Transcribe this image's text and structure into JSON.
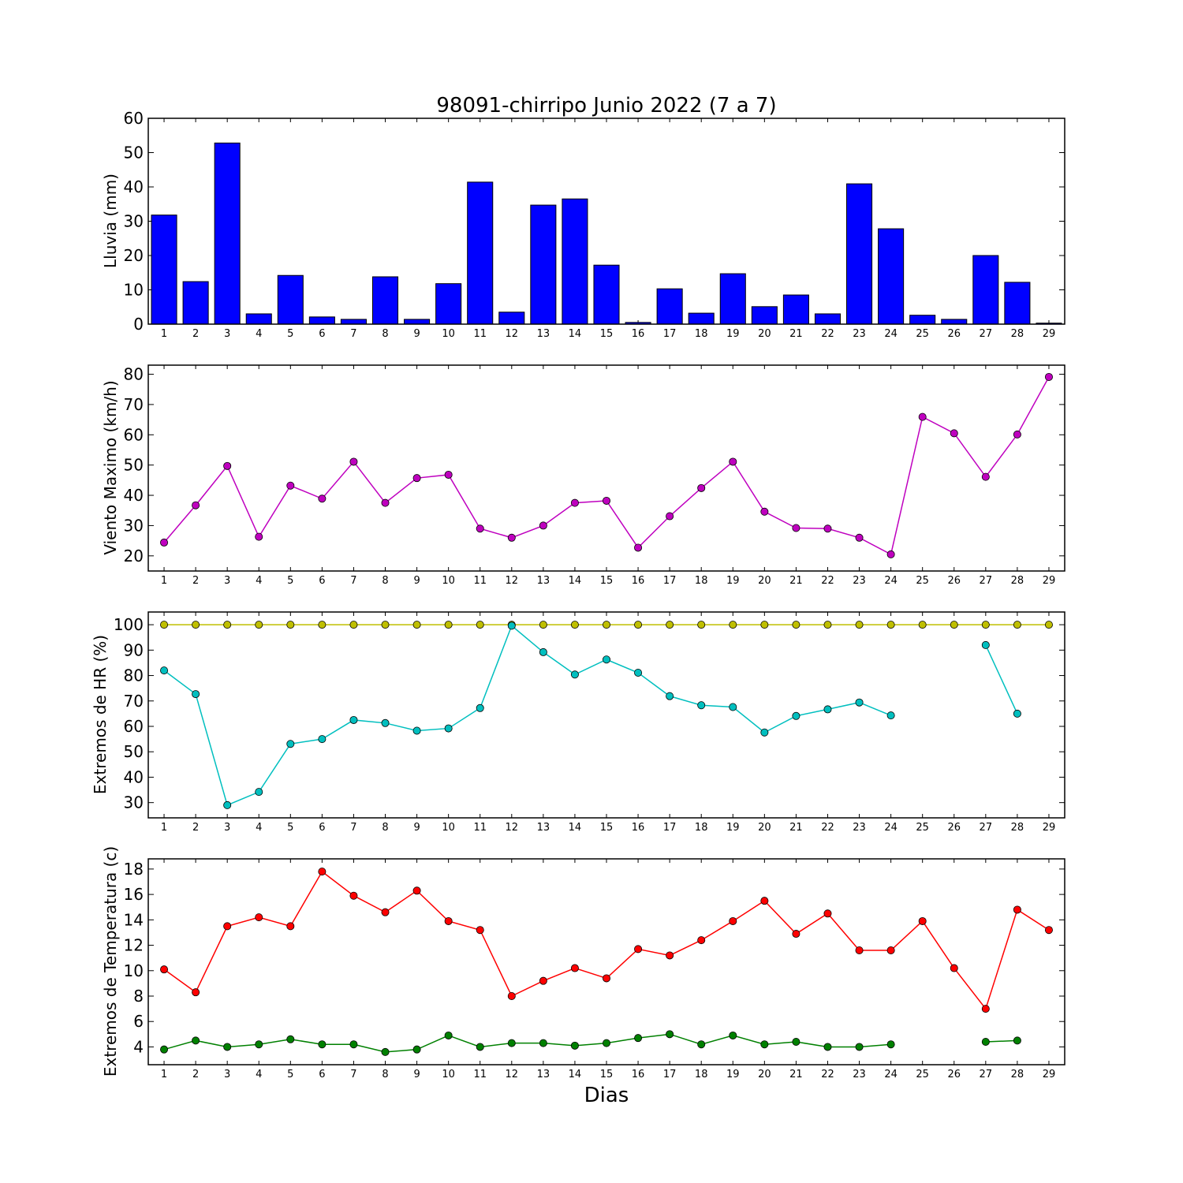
{
  "chart_data": [
    {
      "type": "bar",
      "title": "98091-chirripo Junio 2022  (7 a 7)",
      "xlabel": "",
      "ylabel": "Lluvia (mm)",
      "ylim": [
        0,
        60
      ],
      "yticks": [
        0,
        10,
        20,
        30,
        40,
        50,
        60
      ],
      "categories": [
        "1",
        "2",
        "3",
        "4",
        "5",
        "6",
        "7",
        "8",
        "9",
        "10",
        "11",
        "12",
        "13",
        "14",
        "15",
        "16",
        "17",
        "18",
        "19",
        "20",
        "21",
        "22",
        "23",
        "24",
        "25",
        "26",
        "27",
        "28",
        "29"
      ],
      "values": [
        31.8,
        12.4,
        52.8,
        3.0,
        14.2,
        2.1,
        1.4,
        13.8,
        1.4,
        11.8,
        41.4,
        3.5,
        34.7,
        36.5,
        17.2,
        0.5,
        10.3,
        3.2,
        14.7,
        5.1,
        8.5,
        3.0,
        40.9,
        27.8,
        2.6,
        1.4,
        20.0,
        12.2,
        0.3
      ],
      "colors": {
        "bar": "#0000ff"
      }
    },
    {
      "type": "line",
      "title": "",
      "xlabel": "",
      "ylabel": "Viento Maximo (km/h)",
      "ylim": [
        15,
        83
      ],
      "yticks": [
        20,
        30,
        40,
        50,
        60,
        70,
        80
      ],
      "x": [
        1,
        2,
        3,
        4,
        5,
        6,
        7,
        8,
        9,
        10,
        11,
        12,
        13,
        14,
        15,
        16,
        17,
        18,
        19,
        20,
        21,
        22,
        23,
        24,
        25,
        26,
        27,
        28,
        29
      ],
      "series": [
        {
          "values": [
            24.4,
            36.7,
            49.7,
            26.3,
            43.2,
            38.9,
            51.1,
            37.5,
            45.7,
            46.8,
            29.0,
            26.0,
            30.0,
            37.5,
            38.2,
            22.7,
            33.1,
            42.4,
            51.1,
            34.6,
            29.2,
            29.0,
            26.0,
            20.5,
            65.9,
            60.5,
            46.1,
            60.1,
            79.1
          ],
          "color": "#bf00bf"
        }
      ]
    },
    {
      "type": "line",
      "title": "",
      "xlabel": "",
      "ylabel": "Extremos de HR (%)",
      "ylim": [
        24,
        105
      ],
      "yticks": [
        30,
        40,
        50,
        60,
        70,
        80,
        90,
        100
      ],
      "x": [
        1,
        2,
        3,
        4,
        5,
        6,
        7,
        8,
        9,
        10,
        11,
        12,
        13,
        14,
        15,
        16,
        17,
        18,
        19,
        20,
        21,
        22,
        23,
        24,
        25,
        26,
        27,
        28,
        29
      ],
      "series": [
        {
          "values": [
            100,
            100,
            100,
            100,
            100,
            100,
            100,
            100,
            100,
            100,
            100,
            100,
            100,
            100,
            100,
            100,
            100,
            100,
            100,
            100,
            100,
            100,
            100,
            100,
            100,
            100,
            100,
            100,
            100
          ],
          "color": "#bfbf00"
        },
        {
          "values": [
            82,
            72.7,
            29,
            34.2,
            53.1,
            55,
            62.5,
            61.3,
            58.3,
            59.2,
            67.2,
            99.6,
            89.2,
            80.4,
            86.3,
            81.1,
            71.9,
            68.3,
            67.6,
            57.6,
            64.1,
            66.7,
            69.4,
            64.3,
            null,
            null,
            92,
            65,
            null
          ],
          "color": "#00bfbf"
        }
      ]
    },
    {
      "type": "line",
      "title": "",
      "xlabel": "Dias",
      "ylabel": "Extremos de Temperatura (c)",
      "ylim": [
        2.6,
        18.8
      ],
      "yticks": [
        4,
        6,
        8,
        10,
        12,
        14,
        16,
        18
      ],
      "x": [
        1,
        2,
        3,
        4,
        5,
        6,
        7,
        8,
        9,
        10,
        11,
        12,
        13,
        14,
        15,
        16,
        17,
        18,
        19,
        20,
        21,
        22,
        23,
        24,
        25,
        26,
        27,
        28,
        29
      ],
      "series": [
        {
          "values": [
            10.1,
            8.3,
            13.5,
            14.2,
            13.5,
            17.8,
            15.9,
            14.6,
            16.3,
            13.9,
            13.2,
            8.0,
            9.2,
            10.2,
            9.4,
            11.7,
            11.2,
            12.4,
            13.9,
            15.5,
            12.9,
            14.5,
            11.6,
            11.6,
            13.9,
            10.2,
            7.0,
            14.8,
            13.2
          ],
          "color": "#ff0000"
        },
        {
          "values": [
            3.8,
            4.5,
            4.0,
            4.2,
            4.6,
            4.2,
            4.2,
            3.6,
            3.8,
            4.9,
            4.0,
            4.3,
            4.3,
            4.1,
            4.3,
            4.7,
            5.0,
            4.2,
            4.9,
            4.2,
            4.4,
            4.0,
            4.0,
            4.2,
            null,
            null,
            4.4,
            4.5,
            null
          ],
          "color": "#008000"
        }
      ]
    }
  ]
}
